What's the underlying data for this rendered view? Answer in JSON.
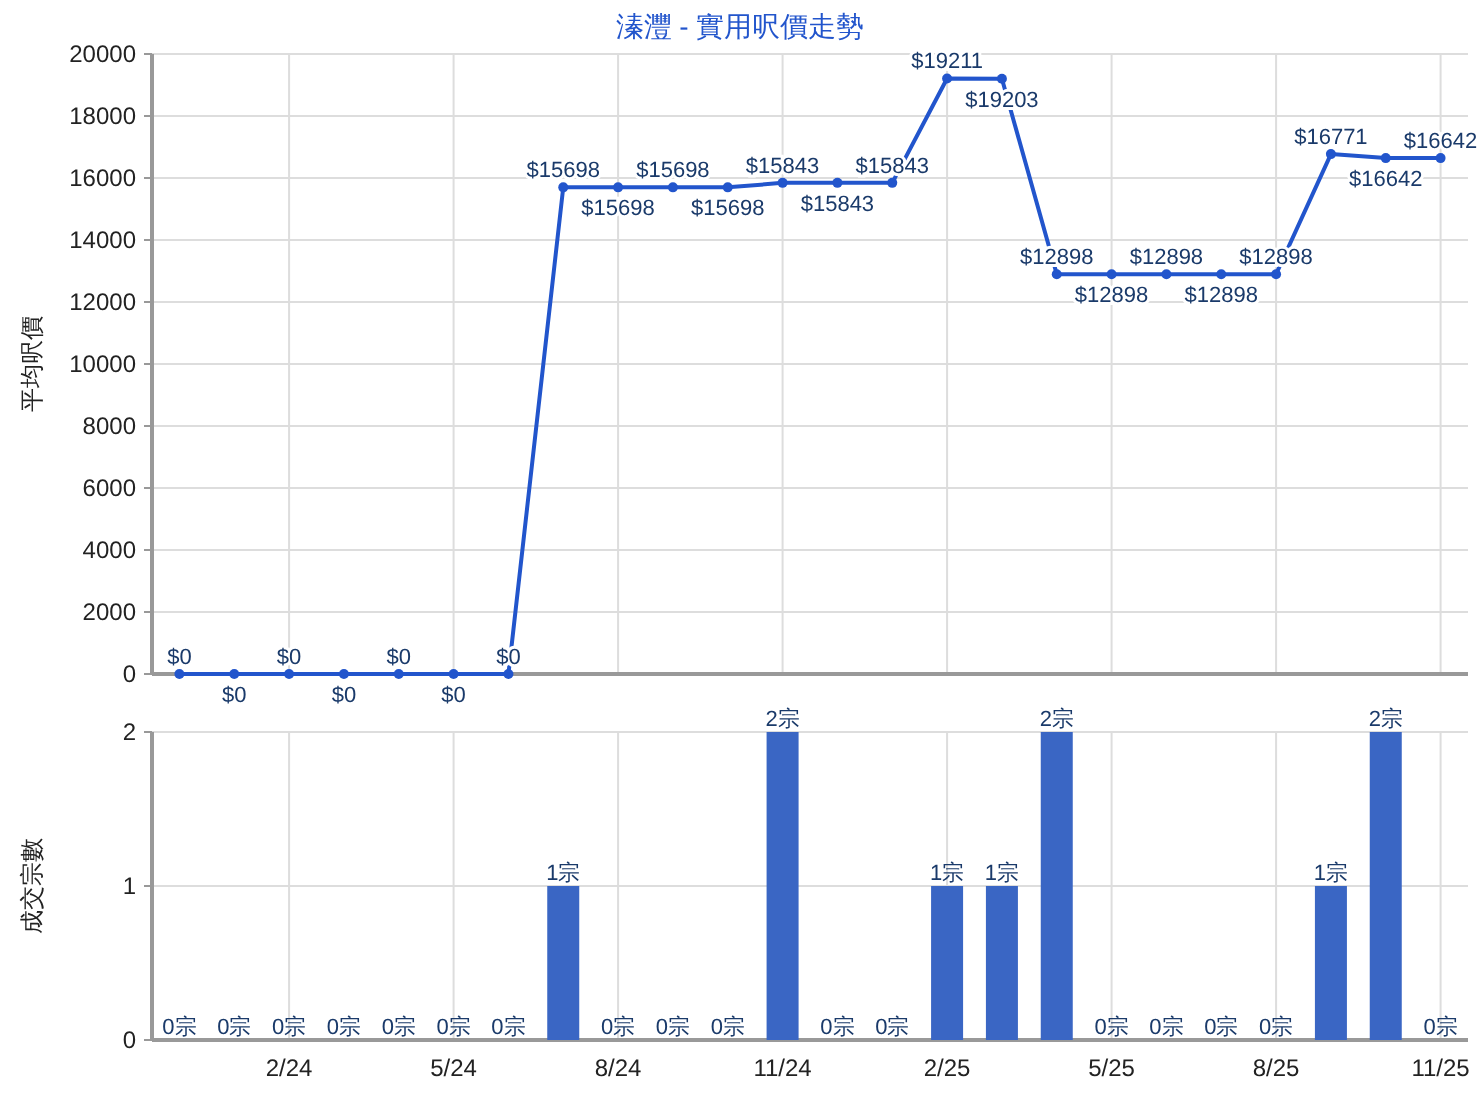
{
  "chart_data": [
    {
      "type": "line",
      "title": "溱灃 - 實用呎價走勢",
      "ylabel": "平均呎價",
      "categories": [
        null,
        null,
        null,
        null,
        null,
        null,
        null,
        null,
        null,
        null,
        null,
        null,
        null,
        null,
        null,
        null,
        null,
        null,
        null,
        null,
        null,
        null,
        null,
        null
      ],
      "series": [
        {
          "color": "#2255cc",
          "values": [
            0,
            0,
            0,
            0,
            0,
            0,
            0,
            15698,
            15698,
            15698,
            15698,
            15843,
            15843,
            15843,
            19211,
            19203,
            12898,
            12898,
            12898,
            12898,
            12898,
            16771,
            16642,
            16642
          ],
          "value_labels": [
            "$0",
            "$0",
            "$0",
            "$0",
            "$0",
            "$0",
            "$0",
            "$15698",
            "$15698",
            "$15698",
            "$15698",
            "$15843",
            "$15843",
            "$15843",
            "$19211",
            "$19203",
            "$12898",
            "$12898",
            "$12898",
            "$12898",
            "$12898",
            "$16771",
            "$16642",
            "$16642"
          ]
        }
      ],
      "ylim": [
        0,
        20000
      ],
      "yticks": [
        0,
        2000,
        4000,
        6000,
        8000,
        10000,
        12000,
        14000,
        16000,
        18000,
        20000
      ],
      "grid": true,
      "tick_labels": "y",
      "marker": "circle",
      "line_style": "solid"
    },
    {
      "type": "bar",
      "ylabel": "成交宗數",
      "categories": [
        null,
        null,
        "2/24",
        null,
        null,
        "5/24",
        null,
        null,
        "8/24",
        null,
        null,
        "11/24",
        null,
        null,
        "2/25",
        null,
        null,
        "5/25",
        null,
        null,
        "8/25",
        null,
        null,
        "11/25"
      ],
      "series": [
        {
          "color": "#3a66c4",
          "values": [
            0,
            0,
            0,
            0,
            0,
            0,
            0,
            1,
            0,
            0,
            0,
            2,
            0,
            0,
            1,
            1,
            2,
            0,
            0,
            0,
            0,
            1,
            2,
            0
          ],
          "value_labels": [
            "0宗",
            "0宗",
            "0宗",
            "0宗",
            "0宗",
            "0宗",
            "0宗",
            "1宗",
            "0宗",
            "0宗",
            "0宗",
            "2宗",
            "0宗",
            "0宗",
            "1宗",
            "1宗",
            "2宗",
            "0宗",
            "0宗",
            "0宗",
            "0宗",
            "1宗",
            "2宗",
            "0宗"
          ]
        }
      ],
      "ylim": [
        0,
        2
      ],
      "yticks": [
        0,
        1,
        2
      ],
      "grid": true
    }
  ]
}
